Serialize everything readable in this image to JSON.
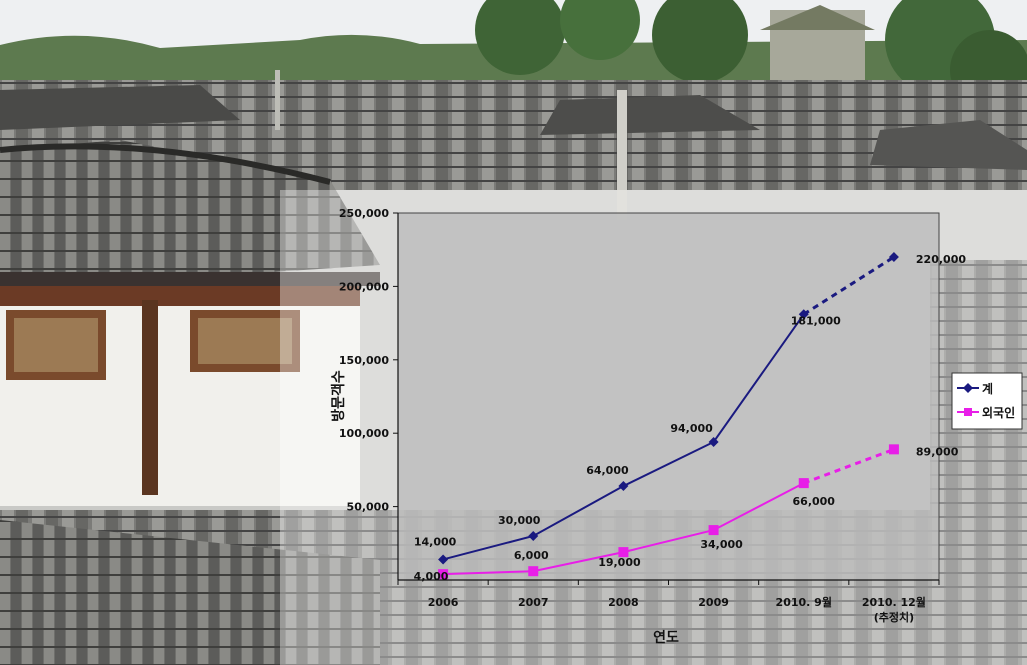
{
  "chart_data": {
    "type": "line",
    "categories": [
      "2006",
      "2007",
      "2008",
      "2009",
      "2010. 9월",
      "2010. 12월"
    ],
    "category_sublabels": [
      "",
      "",
      "",
      "",
      "",
      "(추정치)"
    ],
    "xlabel": "연도",
    "ylabel": "방문객수",
    "ylim": [
      0,
      250000
    ],
    "yticks": [
      "250,000",
      "200,000",
      "150,000",
      "100,000",
      "50,000"
    ],
    "ytick_values": [
      250000,
      200000,
      150000,
      100000,
      50000
    ],
    "grid": false,
    "legend_position": "right",
    "series": [
      {
        "name": "계",
        "color": "#1a1a80",
        "marker": "diamond",
        "values": [
          14000,
          30000,
          64000,
          94000,
          181000,
          220000
        ],
        "labels": [
          "14,000",
          "30,000",
          "64,000",
          "94,000",
          "181,000",
          "220,000"
        ],
        "dashed_last_segment": true
      },
      {
        "name": "외국인",
        "color": "#e81ee8",
        "marker": "square",
        "values": [
          4000,
          6000,
          19000,
          34000,
          66000,
          89000
        ],
        "labels": [
          "4,000",
          "6,000",
          "19,000",
          "34,000",
          "66,000",
          "89,000"
        ],
        "dashed_last_segment": true
      }
    ]
  }
}
